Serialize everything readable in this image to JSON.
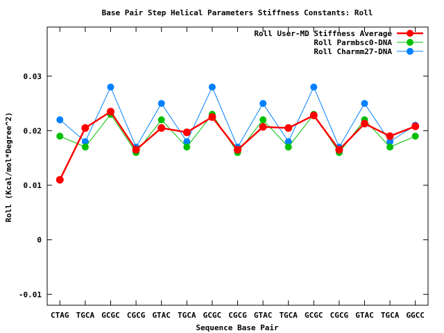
{
  "chart_data": {
    "type": "line",
    "title": "Base Pair Step Helical Parameters Stiffness Constants: Roll",
    "xlabel": "Sequence Base Pair",
    "ylabel": "Roll (Kcal/mol*Degree^2)",
    "categories": [
      "CTAG",
      "TGCA",
      "GCGC",
      "CGCG",
      "GTAC",
      "TGCA",
      "GCGC",
      "CGCG",
      "GTAC",
      "TGCA",
      "GCGC",
      "CGCG",
      "GTAC",
      "TGCA",
      "GGCC"
    ],
    "ylim": [
      -0.012,
      0.039
    ],
    "yticks": [
      -0.01,
      0,
      0.01,
      0.02,
      0.03
    ],
    "ytick_labels": [
      "-0.01",
      "0",
      "0.01",
      "0.02",
      "0.03"
    ],
    "grid": false,
    "legend_position": "top-right",
    "series": [
      {
        "name": "Roll User-MD Stiffness Average",
        "color": "#ff0000",
        "values": [
          0.011,
          0.0205,
          0.0235,
          0.0165,
          0.0205,
          0.0197,
          0.0225,
          0.0165,
          0.0207,
          0.0205,
          0.0228,
          0.0165,
          0.0213,
          0.019,
          0.0208
        ]
      },
      {
        "name": "Roll Parmbsc0-DNA",
        "color": "#00c000",
        "values": [
          0.019,
          0.017,
          0.023,
          0.016,
          0.022,
          0.017,
          0.023,
          0.016,
          0.022,
          0.017,
          0.023,
          0.016,
          0.022,
          0.017,
          0.019
        ]
      },
      {
        "name": "Roll Charmm27-DNA",
        "color": "#0080ff",
        "values": [
          0.022,
          0.018,
          0.028,
          0.017,
          0.025,
          0.018,
          0.028,
          0.017,
          0.025,
          0.018,
          0.028,
          0.017,
          0.025,
          0.018,
          0.021
        ]
      }
    ]
  }
}
